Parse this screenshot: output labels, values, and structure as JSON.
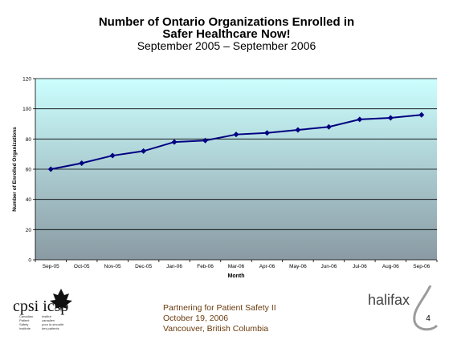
{
  "slide": {
    "title_line1": "Number of Ontario Organizations Enrolled in",
    "title_line2": "Safer Healthcare Now!",
    "subtitle": "September 2005 – September 2006",
    "footer": {
      "line1": "Partnering for Patient Safety II",
      "line2": "October 19, 2006",
      "line3": "Vancouver, British Columbia"
    },
    "page_number": "4",
    "logo_left_text": "cpsi icsp",
    "logo_left_small": [
      "Canadian",
      "Patient",
      "Safety",
      "Institute",
      "Institut",
      "canadien",
      "pour la sécurité",
      "des patients"
    ],
    "logo_right_text": "halifax"
  },
  "chart_data": {
    "type": "line",
    "categories": [
      "Sep-05",
      "Oct-05",
      "Nov-05",
      "Dec-05",
      "Jan-06",
      "Feb-06",
      "Mar-06",
      "Apr-06",
      "May-06",
      "Jun-06",
      "Jul-06",
      "Aug-06",
      "Sep-06"
    ],
    "series": [
      {
        "values": [
          60,
          64,
          69,
          72,
          78,
          79,
          83,
          84,
          86,
          88,
          93,
          94,
          96
        ]
      }
    ],
    "xlabel": "Month",
    "ylabel": "Number of Enrolled Organizations",
    "ylim": [
      0,
      120
    ],
    "yticks": [
      0,
      20,
      40,
      60,
      80,
      100,
      120
    ],
    "grid": true,
    "colors": {
      "line": "#000080",
      "marker": "#000080",
      "plot_bg_top": "#ccffff",
      "plot_bg_bottom": "#8a9aa3"
    }
  }
}
